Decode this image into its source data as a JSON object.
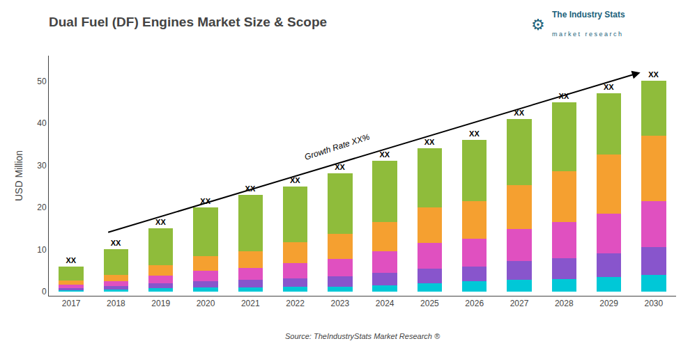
{
  "chart_data": {
    "type": "bar",
    "stacked": true,
    "title": "Dual Fuel (DF) Engines Market Size & Scope",
    "ylabel": "USD Million",
    "categories": [
      "2017",
      "2018",
      "2019",
      "2020",
      "2021",
      "2022",
      "2023",
      "2024",
      "2025",
      "2026",
      "2027",
      "2028",
      "2029",
      "2030"
    ],
    "series": [
      {
        "color": "#00c8d7",
        "values": [
          0.3,
          0.5,
          0.8,
          1.0,
          1.0,
          1.2,
          1.2,
          1.5,
          2.0,
          2.5,
          2.8,
          3.0,
          3.5,
          4.0
        ]
      },
      {
        "color": "#8855cc",
        "values": [
          0.5,
          0.8,
          1.2,
          1.5,
          1.8,
          2.0,
          2.5,
          3.0,
          3.5,
          3.5,
          4.5,
          5.0,
          5.5,
          6.5
        ]
      },
      {
        "color": "#e050c0",
        "values": [
          0.8,
          1.2,
          1.8,
          2.5,
          2.8,
          3.5,
          4.0,
          5.0,
          6.0,
          6.5,
          7.5,
          8.5,
          9.5,
          11.0
        ]
      },
      {
        "color": "#f5a030",
        "values": [
          1.0,
          1.5,
          2.5,
          3.5,
          4.0,
          5.0,
          6.0,
          7.0,
          8.5,
          9.0,
          10.5,
          12.0,
          14.0,
          15.5
        ]
      },
      {
        "color": "#8fbc3b",
        "values": [
          3.4,
          6.0,
          8.7,
          11.5,
          13.4,
          13.3,
          14.3,
          14.5,
          14.0,
          14.5,
          15.7,
          16.5,
          14.5,
          13.0
        ]
      }
    ],
    "total_labels": [
      "XX",
      "XX",
      "XX",
      "XX",
      "XX",
      "XX",
      "XX",
      "XX",
      "XX",
      "XX",
      "XX",
      "XX",
      "XX",
      "XX"
    ],
    "annotations": [
      "Growth Rate XX%"
    ],
    "source": "Source: TheIndustryStats Market Research ®",
    "logo": [
      "⚙",
      "The Industry Stats",
      "m a r k e t   r e s e a r c h"
    ],
    "ylim": [
      -1,
      56
    ],
    "yticks": [
      0,
      10,
      20,
      30,
      40,
      50
    ],
    "grid": false
  }
}
